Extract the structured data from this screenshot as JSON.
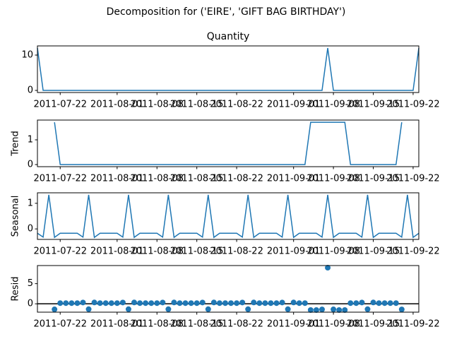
{
  "title": "Decomposition for ('EIRE', 'GIFT BAG BIRTHDAY')",
  "chart_data": [
    {
      "type": "line",
      "title": "Quantity",
      "color": "#1f77b4",
      "x": [
        "2011-07-18",
        "2011-07-19",
        "2011-07-20",
        "2011-07-21",
        "2011-07-22",
        "2011-07-23",
        "2011-07-24",
        "2011-07-25",
        "2011-07-26",
        "2011-07-27",
        "2011-07-28",
        "2011-07-29",
        "2011-07-30",
        "2011-07-31",
        "2011-08-01",
        "2011-08-02",
        "2011-08-03",
        "2011-08-04",
        "2011-08-05",
        "2011-08-06",
        "2011-08-07",
        "2011-08-08",
        "2011-08-09",
        "2011-08-10",
        "2011-08-11",
        "2011-08-12",
        "2011-08-13",
        "2011-08-14",
        "2011-08-15",
        "2011-08-16",
        "2011-08-17",
        "2011-08-18",
        "2011-08-19",
        "2011-08-20",
        "2011-08-21",
        "2011-08-22",
        "2011-08-23",
        "2011-08-24",
        "2011-08-25",
        "2011-08-26",
        "2011-08-27",
        "2011-08-28",
        "2011-08-29",
        "2011-08-30",
        "2011-08-31",
        "2011-09-01",
        "2011-09-02",
        "2011-09-03",
        "2011-09-04",
        "2011-09-05",
        "2011-09-06",
        "2011-09-07",
        "2011-09-08",
        "2011-09-09",
        "2011-09-10",
        "2011-09-11",
        "2011-09-12",
        "2011-09-13",
        "2011-09-14",
        "2011-09-15",
        "2011-09-16",
        "2011-09-17",
        "2011-09-18",
        "2011-09-19",
        "2011-09-20",
        "2011-09-21",
        "2011-09-22",
        "2011-09-23"
      ],
      "values": [
        12,
        0,
        0,
        0,
        0,
        0,
        0,
        0,
        0,
        0,
        0,
        0,
        0,
        0,
        0,
        0,
        0,
        0,
        0,
        0,
        0,
        0,
        0,
        0,
        0,
        0,
        0,
        0,
        0,
        0,
        0,
        0,
        0,
        0,
        0,
        0,
        0,
        0,
        0,
        0,
        0,
        0,
        0,
        0,
        0,
        0,
        0,
        0,
        0,
        0,
        0,
        12,
        0,
        0,
        0,
        0,
        0,
        0,
        0,
        0,
        0,
        0,
        0,
        0,
        0,
        0,
        0,
        12
      ],
      "xlim": [
        "2011-07-18",
        "2011-09-23"
      ],
      "xticks": [
        "2011-07-22",
        "2011-08-01",
        "2011-08-08",
        "2011-08-15",
        "2011-08-22",
        "2011-09-01",
        "2011-09-08",
        "2011-09-15",
        "2011-09-22"
      ],
      "ylim": [
        -0.6,
        12.6
      ],
      "yticks": [
        0,
        10
      ]
    },
    {
      "type": "line",
      "ylabel": "Trend",
      "color": "#1f77b4",
      "x": [
        "2011-07-18",
        "2011-07-19",
        "2011-07-20",
        "2011-07-21",
        "2011-07-22",
        "2011-07-23",
        "2011-07-24",
        "2011-07-25",
        "2011-07-26",
        "2011-07-27",
        "2011-07-28",
        "2011-07-29",
        "2011-07-30",
        "2011-07-31",
        "2011-08-01",
        "2011-08-02",
        "2011-08-03",
        "2011-08-04",
        "2011-08-05",
        "2011-08-06",
        "2011-08-07",
        "2011-08-08",
        "2011-08-09",
        "2011-08-10",
        "2011-08-11",
        "2011-08-12",
        "2011-08-13",
        "2011-08-14",
        "2011-08-15",
        "2011-08-16",
        "2011-08-17",
        "2011-08-18",
        "2011-08-19",
        "2011-08-20",
        "2011-08-21",
        "2011-08-22",
        "2011-08-23",
        "2011-08-24",
        "2011-08-25",
        "2011-08-26",
        "2011-08-27",
        "2011-08-28",
        "2011-08-29",
        "2011-08-30",
        "2011-08-31",
        "2011-09-01",
        "2011-09-02",
        "2011-09-03",
        "2011-09-04",
        "2011-09-05",
        "2011-09-06",
        "2011-09-07",
        "2011-09-08",
        "2011-09-09",
        "2011-09-10",
        "2011-09-11",
        "2011-09-12",
        "2011-09-13",
        "2011-09-14",
        "2011-09-15",
        "2011-09-16",
        "2011-09-17",
        "2011-09-18",
        "2011-09-19",
        "2011-09-20",
        "2011-09-21",
        "2011-09-22",
        "2011-09-23"
      ],
      "values": [
        null,
        null,
        null,
        1.71,
        0,
        0,
        0,
        0,
        0,
        0,
        0,
        0,
        0,
        0,
        0,
        0,
        0,
        0,
        0,
        0,
        0,
        0,
        0,
        0,
        0,
        0,
        0,
        0,
        0,
        0,
        0,
        0,
        0,
        0,
        0,
        0,
        0,
        0,
        0,
        0,
        0,
        0,
        0,
        0,
        0,
        0,
        0,
        0,
        1.71,
        1.71,
        1.71,
        1.71,
        1.71,
        1.71,
        1.71,
        0,
        0,
        0,
        0,
        0,
        0,
        0,
        0,
        0,
        1.71,
        null,
        null,
        null
      ],
      "xlim": [
        "2011-07-18",
        "2011-09-23"
      ],
      "xticks": [
        "2011-07-22",
        "2011-08-01",
        "2011-08-08",
        "2011-08-15",
        "2011-08-22",
        "2011-09-01",
        "2011-09-08",
        "2011-09-15",
        "2011-09-22"
      ],
      "ylim": [
        -0.086,
        1.8
      ],
      "yticks": [
        0,
        1
      ]
    },
    {
      "type": "line",
      "ylabel": "Seasonal",
      "color": "#1f77b4",
      "x": [
        "2011-07-18",
        "2011-07-19",
        "2011-07-20",
        "2011-07-21",
        "2011-07-22",
        "2011-07-23",
        "2011-07-24",
        "2011-07-25",
        "2011-07-26",
        "2011-07-27",
        "2011-07-28",
        "2011-07-29",
        "2011-07-30",
        "2011-07-31",
        "2011-08-01",
        "2011-08-02",
        "2011-08-03",
        "2011-08-04",
        "2011-08-05",
        "2011-08-06",
        "2011-08-07",
        "2011-08-08",
        "2011-08-09",
        "2011-08-10",
        "2011-08-11",
        "2011-08-12",
        "2011-08-13",
        "2011-08-14",
        "2011-08-15",
        "2011-08-16",
        "2011-08-17",
        "2011-08-18",
        "2011-08-19",
        "2011-08-20",
        "2011-08-21",
        "2011-08-22",
        "2011-08-23",
        "2011-08-24",
        "2011-08-25",
        "2011-08-26",
        "2011-08-27",
        "2011-08-28",
        "2011-08-29",
        "2011-08-30",
        "2011-08-31",
        "2011-09-01",
        "2011-09-02",
        "2011-09-03",
        "2011-09-04",
        "2011-09-05",
        "2011-09-06",
        "2011-09-07",
        "2011-09-08",
        "2011-09-09",
        "2011-09-10",
        "2011-09-11",
        "2011-09-12",
        "2011-09-13",
        "2011-09-14",
        "2011-09-15",
        "2011-09-16",
        "2011-09-17",
        "2011-09-18",
        "2011-09-19",
        "2011-09-20",
        "2011-09-21",
        "2011-09-22",
        "2011-09-23"
      ],
      "values": [
        -0.17,
        -0.32,
        1.33,
        -0.33,
        -0.17,
        -0.17,
        -0.17,
        -0.17,
        -0.32,
        1.33,
        -0.33,
        -0.17,
        -0.17,
        -0.17,
        -0.17,
        -0.32,
        1.33,
        -0.33,
        -0.17,
        -0.17,
        -0.17,
        -0.17,
        -0.32,
        1.33,
        -0.33,
        -0.17,
        -0.17,
        -0.17,
        -0.17,
        -0.32,
        1.33,
        -0.33,
        -0.17,
        -0.17,
        -0.17,
        -0.17,
        -0.32,
        1.33,
        -0.33,
        -0.17,
        -0.17,
        -0.17,
        -0.17,
        -0.32,
        1.33,
        -0.33,
        -0.17,
        -0.17,
        -0.17,
        -0.17,
        -0.32,
        1.33,
        -0.33,
        -0.17,
        -0.17,
        -0.17,
        -0.17,
        -0.32,
        1.33,
        -0.33,
        -0.17,
        -0.17,
        -0.17,
        -0.17,
        -0.32,
        1.33,
        -0.33,
        -0.17
      ],
      "xlim": [
        "2011-07-18",
        "2011-09-23"
      ],
      "xticks": [
        "2011-07-22",
        "2011-08-01",
        "2011-08-08",
        "2011-08-15",
        "2011-08-22",
        "2011-09-01",
        "2011-09-08",
        "2011-09-15",
        "2011-09-22"
      ],
      "ylim": [
        -0.41,
        1.41
      ],
      "yticks": [
        0,
        1
      ]
    },
    {
      "type": "scatter",
      "ylabel": "Resid",
      "color": "#1f77b4",
      "x": [
        "2011-07-18",
        "2011-07-19",
        "2011-07-20",
        "2011-07-21",
        "2011-07-22",
        "2011-07-23",
        "2011-07-24",
        "2011-07-25",
        "2011-07-26",
        "2011-07-27",
        "2011-07-28",
        "2011-07-29",
        "2011-07-30",
        "2011-07-31",
        "2011-08-01",
        "2011-08-02",
        "2011-08-03",
        "2011-08-04",
        "2011-08-05",
        "2011-08-06",
        "2011-08-07",
        "2011-08-08",
        "2011-08-09",
        "2011-08-10",
        "2011-08-11",
        "2011-08-12",
        "2011-08-13",
        "2011-08-14",
        "2011-08-15",
        "2011-08-16",
        "2011-08-17",
        "2011-08-18",
        "2011-08-19",
        "2011-08-20",
        "2011-08-21",
        "2011-08-22",
        "2011-08-23",
        "2011-08-24",
        "2011-08-25",
        "2011-08-26",
        "2011-08-27",
        "2011-08-28",
        "2011-08-29",
        "2011-08-30",
        "2011-08-31",
        "2011-09-01",
        "2011-09-02",
        "2011-09-03",
        "2011-09-04",
        "2011-09-05",
        "2011-09-06",
        "2011-09-07",
        "2011-09-08",
        "2011-09-09",
        "2011-09-10",
        "2011-09-11",
        "2011-09-12",
        "2011-09-13",
        "2011-09-14",
        "2011-09-15",
        "2011-09-16",
        "2011-09-17",
        "2011-09-18",
        "2011-09-19",
        "2011-09-20",
        "2011-09-21",
        "2011-09-22",
        "2011-09-23"
      ],
      "values": [
        null,
        null,
        null,
        -1.38,
        0.17,
        0.17,
        0.17,
        0.17,
        0.32,
        -1.33,
        0.33,
        0.17,
        0.17,
        0.17,
        0.17,
        0.32,
        -1.33,
        0.33,
        0.17,
        0.17,
        0.17,
        0.17,
        0.32,
        -1.33,
        0.33,
        0.17,
        0.17,
        0.17,
        0.17,
        0.32,
        -1.33,
        0.33,
        0.17,
        0.17,
        0.17,
        0.17,
        0.32,
        -1.33,
        0.33,
        0.17,
        0.17,
        0.17,
        0.17,
        0.32,
        -1.33,
        0.33,
        0.17,
        0.17,
        -1.54,
        -1.54,
        -1.39,
        8.96,
        -1.38,
        -1.54,
        -1.54,
        0.17,
        0.17,
        0.32,
        -1.33,
        0.33,
        0.17,
        0.17,
        0.17,
        0.17,
        -1.39,
        null,
        null,
        null
      ],
      "xlim": [
        "2011-07-18",
        "2011-09-23"
      ],
      "xticks": [
        "2011-07-22",
        "2011-08-01",
        "2011-08-08",
        "2011-08-15",
        "2011-08-22",
        "2011-09-01",
        "2011-09-08",
        "2011-09-15",
        "2011-09-22"
      ],
      "ylim": [
        -2.07,
        9.49
      ],
      "yticks": [
        0,
        5
      ]
    }
  ]
}
